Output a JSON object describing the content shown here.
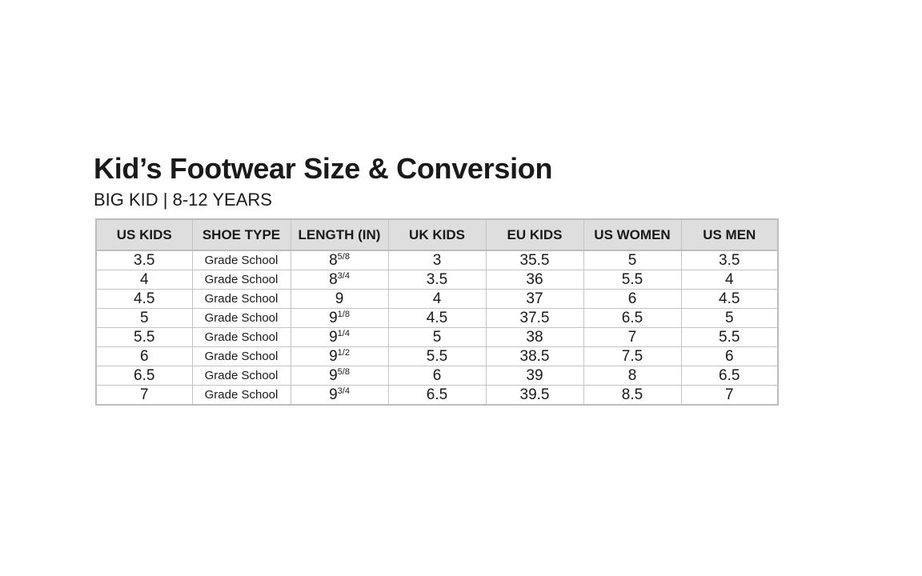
{
  "title": "Kid’s Footwear Size & Conversion",
  "subtitle": "BIG KID | 8-12 YEARS",
  "table": {
    "headers": [
      "US KIDS",
      "SHOE TYPE",
      "LENGTH (IN)",
      "UK KIDS",
      "EU KIDS",
      "US WOMEN",
      "US MEN"
    ],
    "rows": [
      {
        "us_kids": "3.5",
        "shoe_type": "Grade School",
        "length_whole": "8",
        "length_frac": "5/8",
        "uk_kids": "3",
        "eu_kids": "35.5",
        "us_women": "5",
        "us_men": "3.5"
      },
      {
        "us_kids": "4",
        "shoe_type": "Grade School",
        "length_whole": "8",
        "length_frac": "3/4",
        "uk_kids": "3.5",
        "eu_kids": "36",
        "us_women": "5.5",
        "us_men": "4"
      },
      {
        "us_kids": "4.5",
        "shoe_type": "Grade School",
        "length_whole": "9",
        "length_frac": "",
        "uk_kids": "4",
        "eu_kids": "37",
        "us_women": "6",
        "us_men": "4.5"
      },
      {
        "us_kids": "5",
        "shoe_type": "Grade School",
        "length_whole": "9",
        "length_frac": "1/8",
        "uk_kids": "4.5",
        "eu_kids": "37.5",
        "us_women": "6.5",
        "us_men": "5"
      },
      {
        "us_kids": "5.5",
        "shoe_type": "Grade School",
        "length_whole": "9",
        "length_frac": "1/4",
        "uk_kids": "5",
        "eu_kids": "38",
        "us_women": "7",
        "us_men": "5.5"
      },
      {
        "us_kids": "6",
        "shoe_type": "Grade School",
        "length_whole": "9",
        "length_frac": "1/2",
        "uk_kids": "5.5",
        "eu_kids": "38.5",
        "us_women": "7.5",
        "us_men": "6"
      },
      {
        "us_kids": "6.5",
        "shoe_type": "Grade School",
        "length_whole": "9",
        "length_frac": "5/8",
        "uk_kids": "6",
        "eu_kids": "39",
        "us_women": "8",
        "us_men": "6.5"
      },
      {
        "us_kids": "7",
        "shoe_type": "Grade School",
        "length_whole": "9",
        "length_frac": "3/4",
        "uk_kids": "6.5",
        "eu_kids": "39.5",
        "us_women": "8.5",
        "us_men": "7"
      }
    ]
  }
}
